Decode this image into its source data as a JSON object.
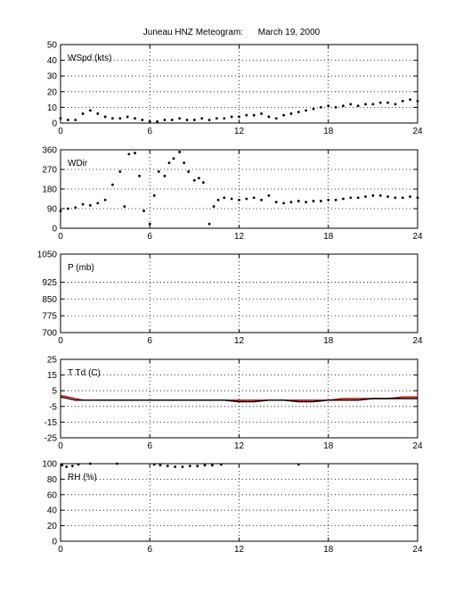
{
  "title": "Juneau HNZ Meteogram:      March 19, 2000",
  "chart_data": [
    {
      "type": "scatter",
      "ylabel": "WSpd (kts)",
      "xlim": [
        0,
        24
      ],
      "ylim": [
        0,
        50
      ],
      "xticks": [
        "0",
        "6",
        "12",
        "18",
        "24"
      ],
      "yticks": [
        "0",
        "10",
        "20",
        "30",
        "40",
        "50"
      ],
      "grid": true,
      "series": [
        {
          "color": "#000000",
          "x": [
            0,
            0.5,
            1.0,
            1.5,
            2.0,
            2.5,
            3.0,
            3.5,
            4.0,
            4.5,
            5.0,
            5.5,
            6.0,
            6.5,
            7.0,
            7.5,
            8.0,
            8.5,
            9.0,
            9.5,
            10.0,
            10.5,
            11.0,
            11.5,
            12.0,
            12.5,
            13.0,
            13.5,
            14.0,
            14.5,
            15.0,
            15.5,
            16.0,
            16.5,
            17.0,
            17.5,
            18.0,
            18.5,
            19.0,
            19.5,
            20.0,
            20.5,
            21.0,
            21.5,
            22.0,
            22.5,
            23.0,
            23.5,
            24.0
          ],
          "y": [
            3,
            2,
            2,
            6,
            8,
            6,
            4,
            3,
            3,
            4,
            3,
            2,
            1,
            1,
            2,
            2,
            3,
            2,
            2,
            3,
            2,
            3,
            3,
            4,
            4,
            5,
            5,
            6,
            4,
            3,
            5,
            6,
            7,
            8,
            9,
            10,
            11,
            10,
            11,
            12,
            11,
            12,
            12,
            13,
            13,
            12,
            14,
            15,
            14
          ]
        }
      ]
    },
    {
      "type": "scatter",
      "ylabel": "WDir",
      "xlim": [
        0,
        24
      ],
      "ylim": [
        0,
        360
      ],
      "xticks": [
        "0",
        "6",
        "12",
        "18",
        "24"
      ],
      "yticks": [
        "0",
        "90",
        "180",
        "270",
        "360"
      ],
      "grid": true,
      "series": [
        {
          "color": "#000000",
          "x": [
            0,
            0.5,
            1.0,
            1.5,
            2.0,
            2.5,
            3.0,
            3.5,
            4.0,
            4.3,
            4.6,
            5.0,
            5.3,
            5.6,
            6.0,
            6.3,
            6.6,
            7.0,
            7.3,
            7.6,
            8.0,
            8.3,
            8.6,
            9.0,
            9.3,
            9.6,
            10.0,
            10.3,
            10.6,
            11.0,
            11.5,
            12.0,
            12.5,
            13.0,
            13.5,
            14.0,
            14.5,
            15.0,
            15.5,
            16.0,
            16.5,
            17.0,
            17.5,
            18.0,
            18.5,
            19.0,
            19.5,
            20.0,
            20.5,
            21.0,
            21.5,
            22.0,
            22.5,
            23.0,
            23.5,
            24.0
          ],
          "y": [
            80,
            90,
            95,
            110,
            105,
            115,
            130,
            200,
            260,
            100,
            340,
            345,
            240,
            80,
            20,
            150,
            260,
            240,
            300,
            320,
            350,
            300,
            260,
            220,
            230,
            210,
            20,
            100,
            130,
            140,
            135,
            130,
            135,
            140,
            130,
            150,
            120,
            115,
            120,
            125,
            120,
            125,
            125,
            130,
            130,
            135,
            140,
            140,
            145,
            150,
            150,
            145,
            140,
            140,
            145,
            140
          ]
        }
      ]
    },
    {
      "type": "line",
      "ylabel": "P (mb)",
      "xlim": [
        0,
        24
      ],
      "ylim": [
        700,
        1050
      ],
      "xticks": [
        "0",
        "6",
        "12",
        "18",
        "24"
      ],
      "yticks": [
        "700",
        "775",
        "850",
        "925",
        "1050"
      ],
      "grid": true,
      "series": []
    },
    {
      "type": "line",
      "ylabel": "T Td (C)",
      "xlim": [
        0,
        24
      ],
      "ylim": [
        -25,
        25
      ],
      "xticks": [
        "0",
        "6",
        "12",
        "18",
        "24"
      ],
      "yticks": [
        "-25",
        "-15",
        "-5",
        "5",
        "15",
        "25"
      ],
      "grid": true,
      "series": [
        {
          "color": "#cc0000",
          "x": [
            0,
            0.5,
            1,
            1.5,
            2,
            3,
            4,
            5,
            6,
            7,
            8,
            9,
            10,
            11,
            12,
            13,
            14,
            15,
            16,
            17,
            18,
            19,
            20,
            21,
            22,
            23,
            24
          ],
          "y": [
            2,
            1,
            0,
            -1,
            -1,
            -1,
            -1,
            -1,
            -1,
            -1,
            -1,
            -1,
            -1,
            -1,
            -1,
            -1,
            -1,
            -1,
            -1,
            -1,
            -1,
            0,
            0,
            0,
            0,
            1,
            1
          ]
        },
        {
          "color": "#000000",
          "x": [
            0,
            0.5,
            1,
            1.5,
            2,
            3,
            4,
            5,
            6,
            7,
            8,
            9,
            10,
            11,
            12,
            13,
            14,
            15,
            16,
            17,
            18,
            19,
            20,
            21,
            22,
            23,
            24
          ],
          "y": [
            1,
            0,
            -1,
            -1,
            -1,
            -1,
            -1,
            -1,
            -1,
            -1,
            -1,
            -1,
            -1,
            -1,
            -2,
            -2,
            -1,
            -1,
            -2,
            -2,
            -1,
            -1,
            -1,
            0,
            0,
            0,
            0
          ]
        }
      ]
    },
    {
      "type": "scatter",
      "ylabel": "RH (%)",
      "xlim": [
        0,
        24
      ],
      "ylim": [
        0,
        100
      ],
      "xticks": [
        "0",
        "6",
        "12",
        "18",
        "24"
      ],
      "yticks": [
        "0",
        "20",
        "40",
        "60",
        "80",
        "100"
      ],
      "grid": true,
      "series": [
        {
          "color": "#000000",
          "x": [
            0.1,
            0.4,
            0.8,
            1.2,
            2.0,
            3.8,
            6.3,
            6.7,
            7.2,
            7.7,
            8.2,
            8.7,
            9.2,
            9.7,
            10.2,
            10.8,
            16.0
          ],
          "y": [
            98,
            96,
            97,
            99,
            100,
            100,
            99,
            98,
            97,
            96,
            96,
            97,
            97,
            98,
            98,
            99,
            99
          ]
        }
      ]
    }
  ]
}
